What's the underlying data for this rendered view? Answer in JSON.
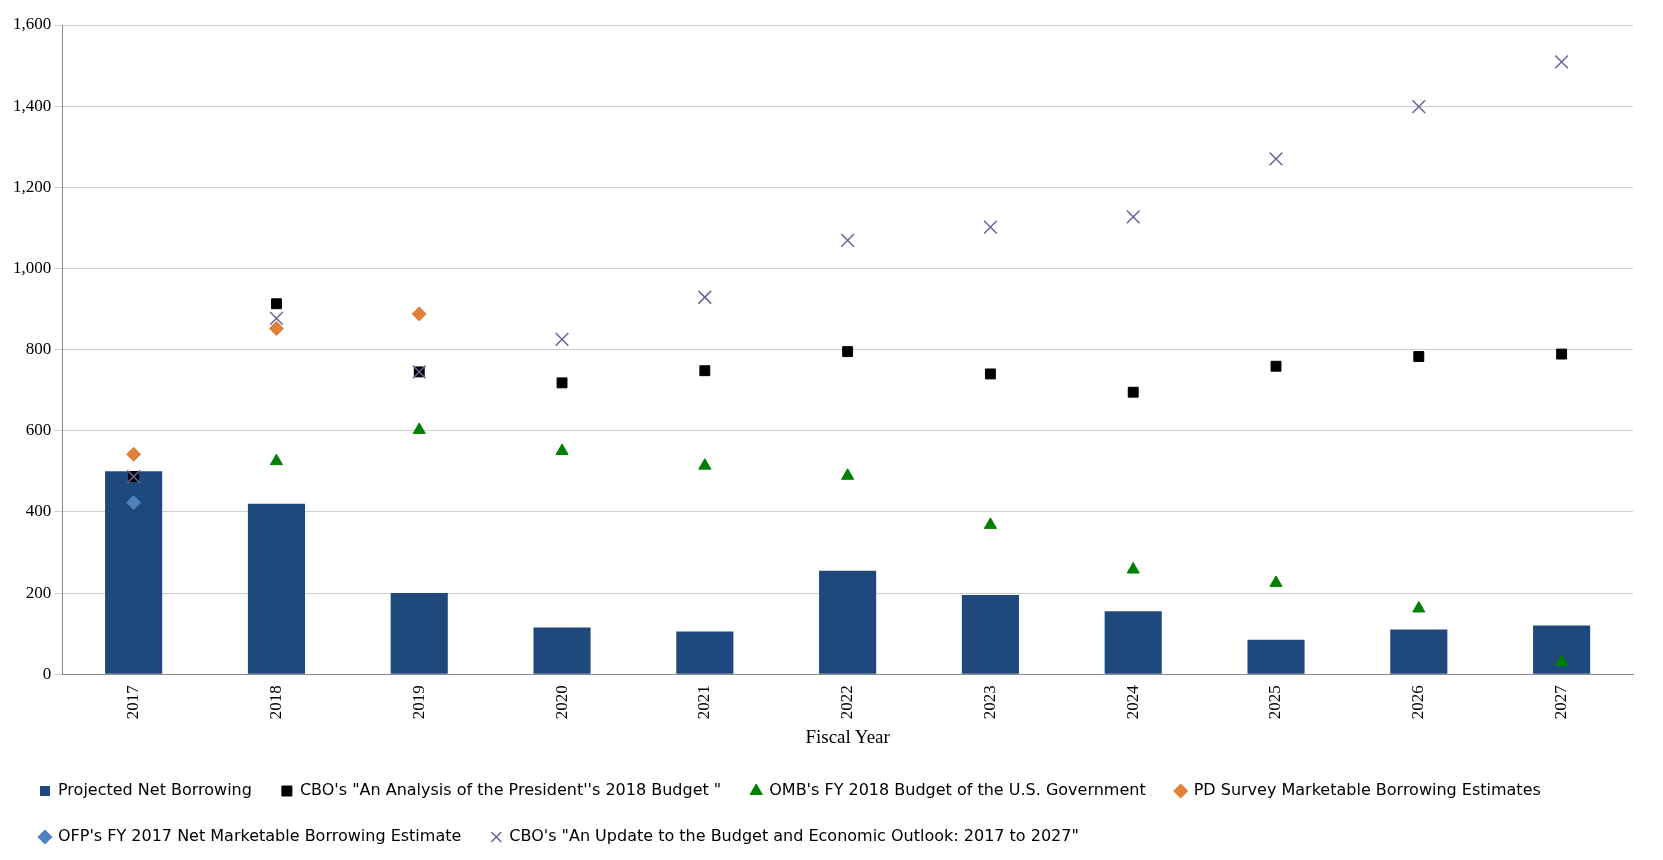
{
  "chart_data": {
    "type": "bar",
    "xlabel": "Fiscal Year",
    "categories": [
      "2017",
      "2018",
      "2019",
      "2020",
      "2021",
      "2022",
      "2023",
      "2024",
      "2025",
      "2026",
      "2027"
    ],
    "ylim": [
      0,
      1600
    ],
    "yticks": [
      0,
      200,
      400,
      600,
      800,
      {
        "value": 1000,
        "label": "1,000"
      },
      {
        "value": 1200,
        "label": "1,200"
      },
      {
        "value": 1400,
        "label": "1,400"
      },
      {
        "value": 1600,
        "label": "1,600"
      }
    ],
    "grid": "y",
    "legend": "bottom",
    "series": [
      {
        "name": "Projected Net Borrowing",
        "color": "#1f497d",
        "values": [
          500,
          420,
          200,
          115,
          105,
          255,
          195,
          155,
          85,
          110,
          120
        ]
      },
      {
        "name": "CBO's \"An Analysis of the President''s 2018 Budget \"",
        "type": "scatter",
        "marker": "square",
        "color": "#000000",
        "values": [
          487,
          913,
          745,
          718,
          748,
          795,
          740,
          695,
          759,
          783,
          789
        ]
      },
      {
        "name": "OMB's FY 2018 Budget of the U.S. Government",
        "type": "scatter",
        "marker": "triangle",
        "color": "#008000",
        "values": [
          null,
          525,
          602,
          550,
          514,
          489,
          368,
          258,
          225,
          162,
          30
        ]
      },
      {
        "name": "PD Survey Marketable Borrowing Estimates",
        "type": "scatter",
        "marker": "diamond",
        "color": "#e0803a",
        "values": [
          542,
          852,
          888,
          null,
          null,
          null,
          null,
          null,
          null,
          null,
          null
        ]
      },
      {
        "name": "OFP's FY 2017 Net Marketable Borrowing Estimate",
        "type": "scatter",
        "marker": "diamond",
        "color": "#4f81bd",
        "values": [
          423,
          null,
          null,
          null,
          null,
          null,
          null,
          null,
          null,
          null,
          null
        ]
      },
      {
        "name": "CBO's \"An Update to the Budget and Economic Outlook: 2017 to 2027\"",
        "type": "scatter",
        "marker": "cross",
        "color": "#7060a0",
        "values": [
          487,
          877,
          745,
          825,
          929,
          1069,
          1102,
          1127,
          1270,
          1399,
          1509
        ]
      }
    ]
  }
}
